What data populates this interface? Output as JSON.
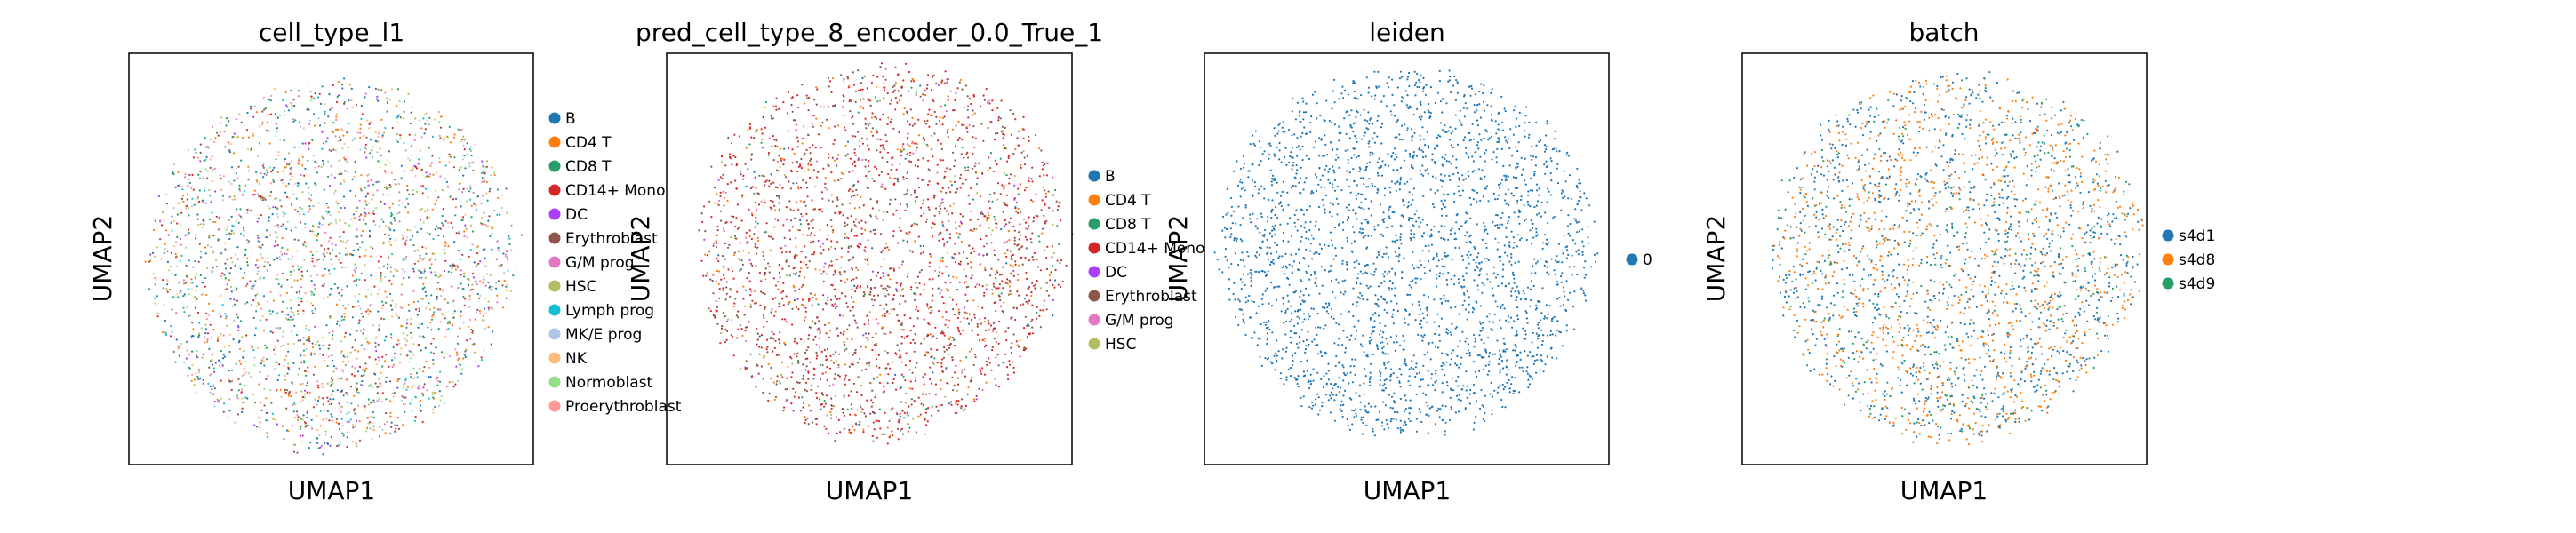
{
  "figure": {
    "panels": [
      {
        "title": "cell_type_l1",
        "xlabel": "UMAP1",
        "ylabel": "UMAP2",
        "legend": [
          {
            "label": "B",
            "color": "#1f77b4"
          },
          {
            "label": "CD4 T",
            "color": "#ff7f0e"
          },
          {
            "label": "CD8 T",
            "color": "#279e68"
          },
          {
            "label": "CD14+ Mono",
            "color": "#d62728"
          },
          {
            "label": "DC",
            "color": "#aa40fc"
          },
          {
            "label": "Erythroblast",
            "color": "#8c564b"
          },
          {
            "label": "G/M prog",
            "color": "#e377c2"
          },
          {
            "label": "HSC",
            "color": "#b5bd61"
          },
          {
            "label": "Lymph prog",
            "color": "#17becf"
          },
          {
            "label": "MK/E prog",
            "color": "#aec7e8"
          },
          {
            "label": "NK",
            "color": "#ffbb78"
          },
          {
            "label": "Normoblast",
            "color": "#98df8a"
          },
          {
            "label": "Proerythroblast",
            "color": "#ff9896"
          }
        ]
      },
      {
        "title": "pred_cell_type_8_encoder_0.0_True_1",
        "xlabel": "UMAP1",
        "ylabel": "UMAP2",
        "legend": [
          {
            "label": "B",
            "color": "#1f77b4"
          },
          {
            "label": "CD4 T",
            "color": "#ff7f0e"
          },
          {
            "label": "CD8 T",
            "color": "#279e68"
          },
          {
            "label": "CD14+ Mono",
            "color": "#d62728"
          },
          {
            "label": "DC",
            "color": "#aa40fc"
          },
          {
            "label": "Erythroblast",
            "color": "#8c564b"
          },
          {
            "label": "G/M prog",
            "color": "#e377c2"
          },
          {
            "label": "HSC",
            "color": "#b5bd61"
          }
        ]
      },
      {
        "title": "leiden",
        "xlabel": "UMAP1",
        "ylabel": "UMAP2",
        "legend": [
          {
            "label": "0",
            "color": "#1f77b4"
          }
        ]
      },
      {
        "title": "batch",
        "xlabel": "UMAP1",
        "ylabel": "UMAP2",
        "legend": [
          {
            "label": "s4d1",
            "color": "#1f77b4"
          },
          {
            "label": "s4d8",
            "color": "#ff7f0e"
          },
          {
            "label": "s4d9",
            "color": "#279e68"
          }
        ]
      }
    ]
  },
  "chart_data": [
    {
      "type": "scatter",
      "title": "cell_type_l1",
      "xlabel": "UMAP1",
      "ylabel": "UMAP2",
      "grid": false,
      "legend_position": "right",
      "series": [
        {
          "name": "B",
          "color": "#1f77b4",
          "weight": 0.13
        },
        {
          "name": "CD4 T",
          "color": "#ff7f0e",
          "weight": 0.12
        },
        {
          "name": "CD8 T",
          "color": "#279e68",
          "weight": 0.14
        },
        {
          "name": "CD14+ Mono",
          "color": "#d62728",
          "weight": 0.1
        },
        {
          "name": "DC",
          "color": "#aa40fc",
          "weight": 0.03
        },
        {
          "name": "Erythroblast",
          "color": "#8c564b",
          "weight": 0.07
        },
        {
          "name": "G/M prog",
          "color": "#e377c2",
          "weight": 0.05
        },
        {
          "name": "HSC",
          "color": "#b5bd61",
          "weight": 0.07
        },
        {
          "name": "Lymph prog",
          "color": "#17becf",
          "weight": 0.05
        },
        {
          "name": "MK/E prog",
          "color": "#aec7e8",
          "weight": 0.05
        },
        {
          "name": "NK",
          "color": "#ffbb78",
          "weight": 0.06
        },
        {
          "name": "Normoblast",
          "color": "#98df8a",
          "weight": 0.07
        },
        {
          "name": "Proerythroblast",
          "color": "#ff9896",
          "weight": 0.06
        }
      ]
    },
    {
      "type": "scatter",
      "title": "pred_cell_type_8_encoder_0.0_True_1",
      "xlabel": "UMAP1",
      "ylabel": "UMAP2",
      "grid": false,
      "legend_position": "right",
      "series": [
        {
          "name": "B",
          "color": "#1f77b4",
          "weight": 0.03
        },
        {
          "name": "CD4 T",
          "color": "#ff7f0e",
          "weight": 0.1
        },
        {
          "name": "CD8 T",
          "color": "#279e68",
          "weight": 0.04
        },
        {
          "name": "CD14+ Mono",
          "color": "#d62728",
          "weight": 0.45
        },
        {
          "name": "DC",
          "color": "#aa40fc",
          "weight": 0.02
        },
        {
          "name": "Erythroblast",
          "color": "#8c564b",
          "weight": 0.3
        },
        {
          "name": "G/M prog",
          "color": "#e377c2",
          "weight": 0.03
        },
        {
          "name": "HSC",
          "color": "#b5bd61",
          "weight": 0.03
        }
      ]
    },
    {
      "type": "scatter",
      "title": "leiden",
      "xlabel": "UMAP1",
      "ylabel": "UMAP2",
      "grid": false,
      "legend_position": "right",
      "series": [
        {
          "name": "0",
          "color": "#1f77b4",
          "weight": 1.0
        }
      ]
    },
    {
      "type": "scatter",
      "title": "batch",
      "xlabel": "UMAP1",
      "ylabel": "UMAP2",
      "grid": false,
      "legend_position": "right",
      "series": [
        {
          "name": "s4d1",
          "color": "#1f77b4",
          "weight": 0.45
        },
        {
          "name": "s4d8",
          "color": "#ff7f0e",
          "weight": 0.4
        },
        {
          "name": "s4d9",
          "color": "#279e68",
          "weight": 0.15
        }
      ]
    }
  ]
}
